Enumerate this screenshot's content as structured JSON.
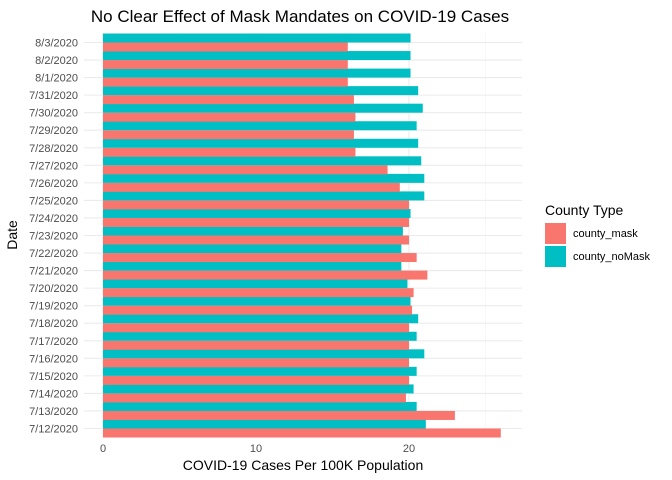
{
  "chart_data": {
    "type": "bar",
    "orientation": "horizontal",
    "title": "No Clear Effect of Mask Mandates on COVID-19 Cases",
    "xlabel": "COVID-19 Cases Per 100K Population",
    "ylabel": "Date",
    "xlim": [
      0,
      27
    ],
    "xticks": [
      0,
      10,
      20
    ],
    "grid": true,
    "legend": {
      "title": "County Type",
      "placement": "right"
    },
    "categories": [
      "7/12/2020",
      "7/13/2020",
      "7/14/2020",
      "7/15/2020",
      "7/16/2020",
      "7/17/2020",
      "7/18/2020",
      "7/19/2020",
      "7/20/2020",
      "7/21/2020",
      "7/22/2020",
      "7/23/2020",
      "7/24/2020",
      "7/25/2020",
      "7/26/2020",
      "7/27/2020",
      "7/28/2020",
      "7/29/2020",
      "7/30/2020",
      "7/31/2020",
      "8/1/2020",
      "8/2/2020",
      "8/3/2020"
    ],
    "series": [
      {
        "name": "county_mask",
        "color": "#F8766D",
        "values": [
          26.0,
          23.0,
          19.8,
          20.0,
          20.0,
          20.0,
          20.0,
          20.2,
          20.3,
          21.2,
          20.5,
          20.0,
          20.0,
          20.0,
          19.4,
          18.6,
          16.5,
          16.4,
          16.5,
          16.4,
          16.0,
          16.0,
          16.0
        ]
      },
      {
        "name": "county_noMask",
        "color": "#00BFC4",
        "values": [
          21.1,
          20.5,
          20.3,
          20.5,
          21.0,
          20.5,
          20.6,
          20.1,
          19.9,
          19.5,
          19.5,
          19.6,
          20.1,
          21.0,
          21.0,
          20.8,
          20.6,
          20.5,
          20.9,
          20.6,
          20.1,
          20.1,
          20.1
        ]
      }
    ]
  }
}
